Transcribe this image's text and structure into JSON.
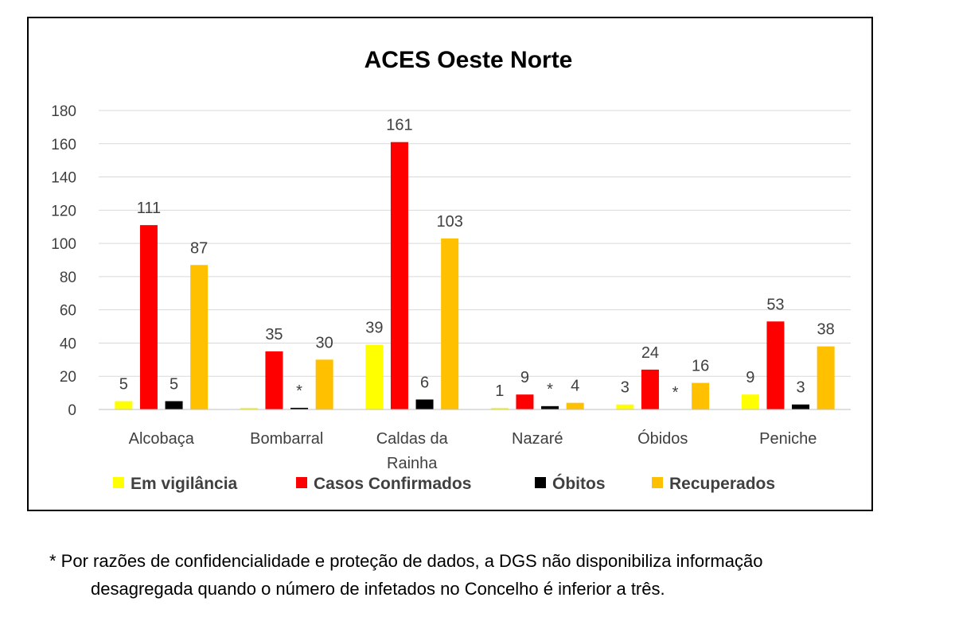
{
  "chart_data": {
    "type": "bar",
    "title": "ACES Oeste Norte",
    "categories": [
      "Alcobaça",
      "Bombarral",
      "Caldas da Rainha",
      "Nazaré",
      "Óbidos",
      "Peniche"
    ],
    "ylim": [
      0,
      180
    ],
    "yticks": [
      0,
      20,
      40,
      60,
      80,
      100,
      120,
      140,
      160,
      180
    ],
    "grid": true,
    "legend_position": "bottom",
    "series": [
      {
        "name": "Em vigilância",
        "color": "#ffff00",
        "values": [
          5,
          1,
          39,
          1,
          3,
          9
        ],
        "labels": [
          "5",
          "",
          "39",
          "1",
          "3",
          "9"
        ]
      },
      {
        "name": "Casos Confirmados",
        "color": "#ff0000",
        "values": [
          111,
          35,
          161,
          9,
          24,
          53
        ],
        "labels": [
          "111",
          "35",
          "161",
          "9",
          "24",
          "53"
        ]
      },
      {
        "name": "Óbitos",
        "color": "#000000",
        "values": [
          5,
          1,
          6,
          2,
          0,
          3
        ],
        "labels": [
          "5",
          "*",
          "6",
          "*",
          "*",
          "3"
        ]
      },
      {
        "name": "Recuperados",
        "color": "#ffc000",
        "values": [
          87,
          30,
          103,
          4,
          16,
          38
        ],
        "labels": [
          "87",
          "30",
          "103",
          "4",
          "16",
          "38"
        ]
      }
    ]
  },
  "footnote": {
    "line1": "* Por razões de confidencialidade e proteção de dados, a DGS não disponibiliza informação",
    "line2": "desagregada quando o número de infetados no Concelho é inferior a três."
  }
}
